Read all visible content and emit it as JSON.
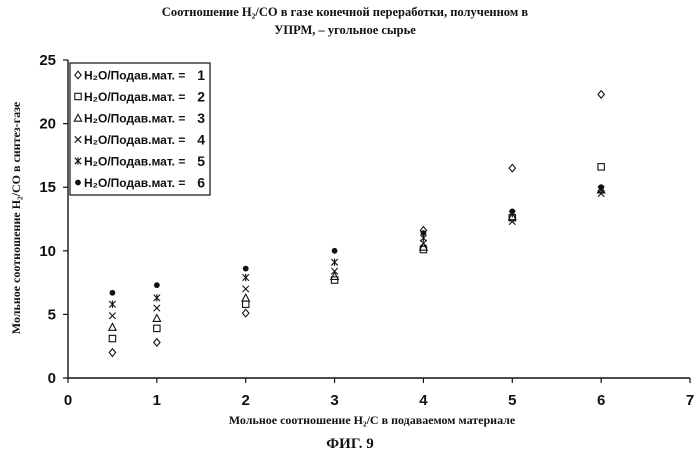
{
  "chart_data": {
    "type": "scatter",
    "title_line1": "Соотношение H₂/CO в газе конечной переработки, полученном в",
    "title_line2": "УПРМ, – угольное сырье",
    "xlabel": "Мольное соотношение H₂/C в подаваемом материале",
    "ylabel": "Мольное соотношение H₂/CO в синтез-газе",
    "figure_label": "ФИГ. 9",
    "xlim": [
      0,
      7
    ],
    "ylim": [
      0,
      25
    ],
    "x_ticks": [
      0,
      1,
      2,
      3,
      4,
      5,
      6,
      7
    ],
    "y_ticks": [
      0,
      5,
      10,
      15,
      20,
      25
    ],
    "grid": false,
    "legend_position": "top-left",
    "series": [
      {
        "name": "H₂O/Подав.мат. = 1",
        "marker": "diamond",
        "x": [
          0.5,
          1,
          2,
          4,
          5,
          6
        ],
        "y": [
          2.0,
          2.8,
          5.1,
          11.6,
          16.5,
          22.3
        ]
      },
      {
        "name": "H₂O/Подав.мат. = 2",
        "marker": "square",
        "x": [
          0.5,
          1,
          2,
          3,
          4,
          5,
          6
        ],
        "y": [
          3.1,
          3.9,
          5.8,
          7.7,
          10.1,
          12.6,
          16.6
        ]
      },
      {
        "name": "H₂O/Подав.мат. = 3",
        "marker": "triangle",
        "x": [
          0.5,
          1,
          2,
          3,
          4,
          5,
          6
        ],
        "y": [
          4.0,
          4.7,
          6.3,
          8.0,
          10.3,
          12.7,
          14.8
        ]
      },
      {
        "name": "H₂O/Подав.мат. = 4",
        "marker": "x",
        "x": [
          0.5,
          1,
          2,
          3,
          4,
          5,
          6
        ],
        "y": [
          4.9,
          5.5,
          7.0,
          8.4,
          10.6,
          12.3,
          14.5
        ]
      },
      {
        "name": "H₂O/Подав.мат. = 5",
        "marker": "star",
        "x": [
          0.5,
          1,
          2,
          3,
          4,
          5,
          6
        ],
        "y": [
          5.8,
          6.3,
          7.9,
          9.1,
          11.0,
          12.9,
          14.8
        ]
      },
      {
        "name": "H₂O/Подав.мат. = 6",
        "marker": "dot",
        "x": [
          0.5,
          1,
          2,
          3,
          4,
          5,
          6
        ],
        "y": [
          6.7,
          7.3,
          8.6,
          10.0,
          11.4,
          13.1,
          15.0
        ]
      }
    ]
  }
}
